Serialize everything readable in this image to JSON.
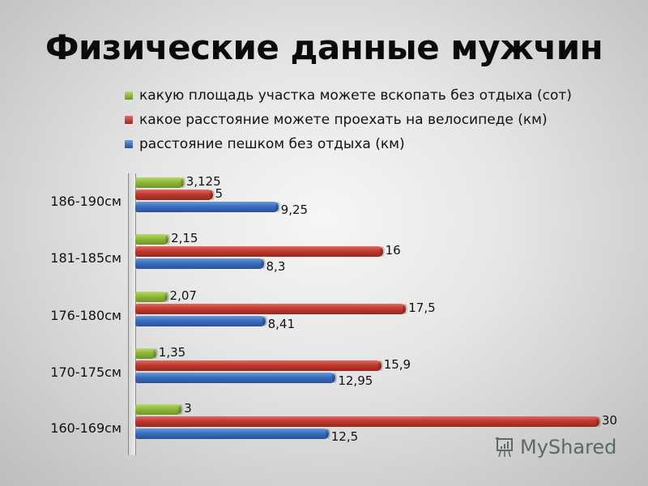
{
  "slide": {
    "title": "Физические данные мужчин",
    "watermark": "MyShared"
  },
  "legend": [
    {
      "label": "какую площадь участка можете вскопать без отдыха (сот)",
      "color": "#8fb83a"
    },
    {
      "label": "какое расстояние можете проехать на велосипеде (км)",
      "color": "#c0392f"
    },
    {
      "label": "расстояние пешком без отдыха (км)",
      "color": "#3a6fbf"
    }
  ],
  "groups": [
    {
      "category": "186-190см",
      "green": "3,125",
      "red": "5",
      "blue": "9,25"
    },
    {
      "category": "181-185см",
      "green": "2,15",
      "red": "16",
      "blue": "8,3"
    },
    {
      "category": "176-180см",
      "green": "2,07",
      "red": "17,5",
      "blue": "8,41"
    },
    {
      "category": "170-175см",
      "green": "1,35",
      "red": "15,9",
      "blue": "12,95"
    },
    {
      "category": "160-169см",
      "green": "3",
      "red": "30",
      "blue": "12,5"
    }
  ],
  "chart_data": {
    "type": "bar",
    "orientation": "horizontal",
    "title": "Физические данные мужчин",
    "categories": [
      "186-190см",
      "181-185см",
      "176-180см",
      "170-175см",
      "160-169см"
    ],
    "series": [
      {
        "name": "какую площадь участка можете вскопать без отдыха (сот)",
        "color": "#8fb83a",
        "values": [
          3.125,
          2.15,
          2.07,
          1.35,
          3
        ]
      },
      {
        "name": "какое расстояние можете проехать на велосипеде (км)",
        "color": "#c0392f",
        "values": [
          5,
          16,
          17.5,
          15.9,
          30
        ]
      },
      {
        "name": "расстояние пешком без отдыха (км)",
        "color": "#3a6fbf",
        "values": [
          9.25,
          8.3,
          8.41,
          12.95,
          12.5
        ]
      }
    ],
    "xlabel": "",
    "ylabel": "",
    "xlim": [
      0,
      30
    ],
    "grid": false,
    "data_labels": true,
    "legend_position": "top"
  }
}
